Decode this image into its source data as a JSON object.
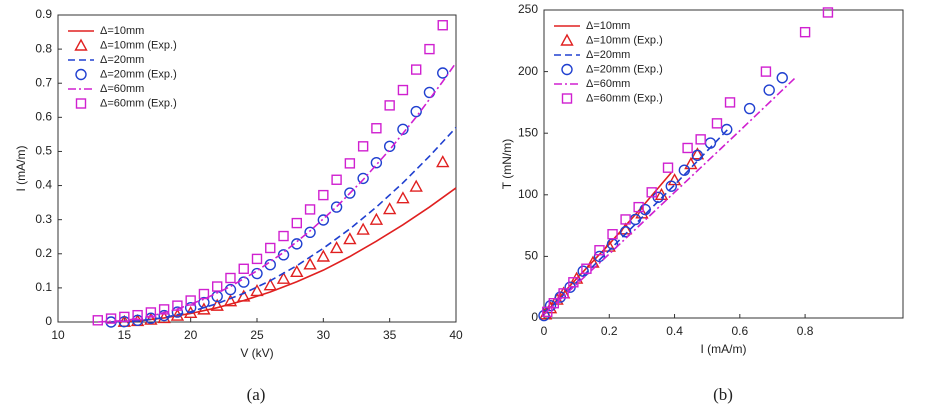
{
  "chart_data": [
    {
      "type": "line",
      "caption": "(a)",
      "xlabel": "V (kV)",
      "ylabel": "I (mA/m)",
      "xlim": [
        10,
        40
      ],
      "xticks": [
        10,
        15,
        20,
        25,
        30,
        35,
        40
      ],
      "ylim": [
        0,
        0.9
      ],
      "yticks": [
        0,
        0.1,
        0.2,
        0.3,
        0.4,
        0.5,
        0.6,
        0.7,
        0.8,
        0.9
      ],
      "legend": "upper-left",
      "series": [
        {
          "name": "Δ=10mm",
          "color": "#e02020",
          "style": "line",
          "dash": "solid",
          "x": [
            14,
            16,
            18,
            20,
            22,
            24,
            26,
            28,
            30,
            32,
            34,
            36,
            38,
            40
          ],
          "values": [
            0,
            0.003,
            0.012,
            0.025,
            0.042,
            0.063,
            0.088,
            0.118,
            0.152,
            0.192,
            0.237,
            0.285,
            0.337,
            0.393
          ]
        },
        {
          "name": "Δ=10mm (Exp.)",
          "color": "#e02020",
          "style": "markers",
          "marker": "triangle",
          "x": [
            15,
            16,
            17,
            18,
            19,
            20,
            21,
            22,
            23,
            24,
            25,
            26,
            27,
            28,
            29,
            30,
            31,
            32,
            33,
            34,
            35,
            36,
            37,
            39
          ],
          "values": [
            0.001,
            0.003,
            0.007,
            0.012,
            0.019,
            0.027,
            0.037,
            0.048,
            0.061,
            0.075,
            0.091,
            0.108,
            0.127,
            0.147,
            0.169,
            0.192,
            0.217,
            0.243,
            0.271,
            0.3,
            0.331,
            0.363,
            0.397,
            0.469
          ]
        },
        {
          "name": "Δ=20mm",
          "color": "#2040d0",
          "style": "line",
          "dash": "dash",
          "x": [
            14,
            16,
            18,
            20,
            22,
            24,
            26,
            28,
            30,
            32,
            34,
            36,
            38,
            40
          ],
          "values": [
            0,
            0.003,
            0.013,
            0.03,
            0.054,
            0.084,
            0.121,
            0.165,
            0.216,
            0.273,
            0.337,
            0.408,
            0.486,
            0.57
          ]
        },
        {
          "name": "Δ=20mm (Exp.)",
          "color": "#2040d0",
          "style": "markers",
          "marker": "circle",
          "x": [
            14,
            15,
            16,
            17,
            18,
            19,
            20,
            21,
            22,
            23,
            24,
            25,
            26,
            27,
            28,
            29,
            30,
            31,
            32,
            33,
            34,
            35,
            36,
            37,
            38,
            39
          ],
          "values": [
            0,
            0.001,
            0.005,
            0.011,
            0.019,
            0.029,
            0.042,
            0.057,
            0.075,
            0.095,
            0.117,
            0.142,
            0.168,
            0.197,
            0.229,
            0.263,
            0.299,
            0.337,
            0.378,
            0.421,
            0.467,
            0.515,
            0.565,
            0.617,
            0.673,
            0.73
          ]
        },
        {
          "name": "Δ=60mm",
          "color": "#d020d0",
          "style": "line",
          "dash": "dashdot",
          "x": [
            13,
            15,
            17,
            19,
            21,
            23,
            25,
            27,
            29,
            31,
            33,
            35,
            37,
            39,
            40
          ],
          "values": [
            0,
            0.004,
            0.017,
            0.038,
            0.067,
            0.104,
            0.15,
            0.204,
            0.267,
            0.338,
            0.417,
            0.505,
            0.601,
            0.705,
            0.76
          ]
        },
        {
          "name": "Δ=60mm (Exp.)",
          "color": "#d020d0",
          "style": "markers",
          "marker": "square",
          "x": [
            13,
            14,
            15,
            16,
            17,
            18,
            19,
            20,
            21,
            22,
            23,
            24,
            25,
            26,
            27,
            28,
            29,
            30,
            31,
            32,
            33,
            34,
            35,
            36,
            37,
            38,
            39
          ],
          "values": [
            0.005,
            0.01,
            0.015,
            0.02,
            0.028,
            0.037,
            0.048,
            0.063,
            0.082,
            0.104,
            0.129,
            0.156,
            0.185,
            0.217,
            0.252,
            0.29,
            0.33,
            0.372,
            0.417,
            0.465,
            0.515,
            0.568,
            0.635,
            0.68,
            0.74,
            0.8,
            0.87
          ]
        }
      ]
    },
    {
      "type": "line",
      "caption": "(b)",
      "xlabel": "I (mA/m)",
      "ylabel": "T (mN/m)",
      "xlim": [
        0,
        1.1
      ],
      "xticks": [
        0,
        0.2,
        0.4,
        0.6,
        0.8
      ],
      "ylim": [
        0,
        250
      ],
      "yticks": [
        0,
        50,
        100,
        150,
        200,
        250
      ],
      "legend": "upper-left",
      "series": [
        {
          "name": "Δ=10mm",
          "color": "#e02020",
          "style": "line",
          "dash": "solid",
          "x": [
            0,
            0.1,
            0.2,
            0.3,
            0.39
          ],
          "values": [
            3,
            32,
            60,
            90,
            118
          ]
        },
        {
          "name": "Δ=10mm (Exp.)",
          "color": "#e02020",
          "style": "markers",
          "marker": "triangle",
          "x": [
            0.005,
            0.02,
            0.04,
            0.06,
            0.1,
            0.15,
            0.2,
            0.25,
            0.3,
            0.36,
            0.4,
            0.45,
            0.47
          ],
          "values": [
            3,
            8,
            15,
            20,
            32,
            45,
            58,
            72,
            85,
            100,
            112,
            125,
            133
          ]
        },
        {
          "name": "Δ=20mm",
          "color": "#2040d0",
          "style": "line",
          "dash": "dash",
          "x": [
            0,
            0.2,
            0.4,
            0.57
          ],
          "values": [
            3,
            55,
            108,
            155
          ]
        },
        {
          "name": "Δ=20mm (Exp.)",
          "color": "#2040d0",
          "style": "markers",
          "marker": "circle",
          "x": [
            0,
            0.02,
            0.05,
            0.08,
            0.12,
            0.17,
            0.21,
            0.25,
            0.28,
            0.31,
            0.35,
            0.39,
            0.43,
            0.47,
            0.51,
            0.56,
            0.63,
            0.69,
            0.73
          ],
          "values": [
            2,
            10,
            17,
            25,
            38,
            50,
            60,
            70,
            80,
            88,
            98,
            107,
            120,
            132,
            142,
            153,
            170,
            185,
            195
          ]
        },
        {
          "name": "Δ=60mm",
          "color": "#d020d0",
          "style": "line",
          "dash": "dashdot",
          "x": [
            0,
            0.2,
            0.4,
            0.6,
            0.77
          ],
          "values": [
            3,
            52,
            102,
            152,
            195
          ]
        },
        {
          "name": "Δ=60mm (Exp.)",
          "color": "#d020d0",
          "style": "markers",
          "marker": "square",
          "x": [
            0.01,
            0.03,
            0.06,
            0.09,
            0.13,
            0.17,
            0.21,
            0.25,
            0.29,
            0.33,
            0.38,
            0.44,
            0.48,
            0.53,
            0.57,
            0.68,
            0.8,
            0.87
          ],
          "values": [
            5,
            12,
            20,
            29,
            40,
            55,
            68,
            80,
            90,
            102,
            122,
            138,
            145,
            158,
            175,
            200,
            232,
            248
          ]
        }
      ]
    }
  ]
}
